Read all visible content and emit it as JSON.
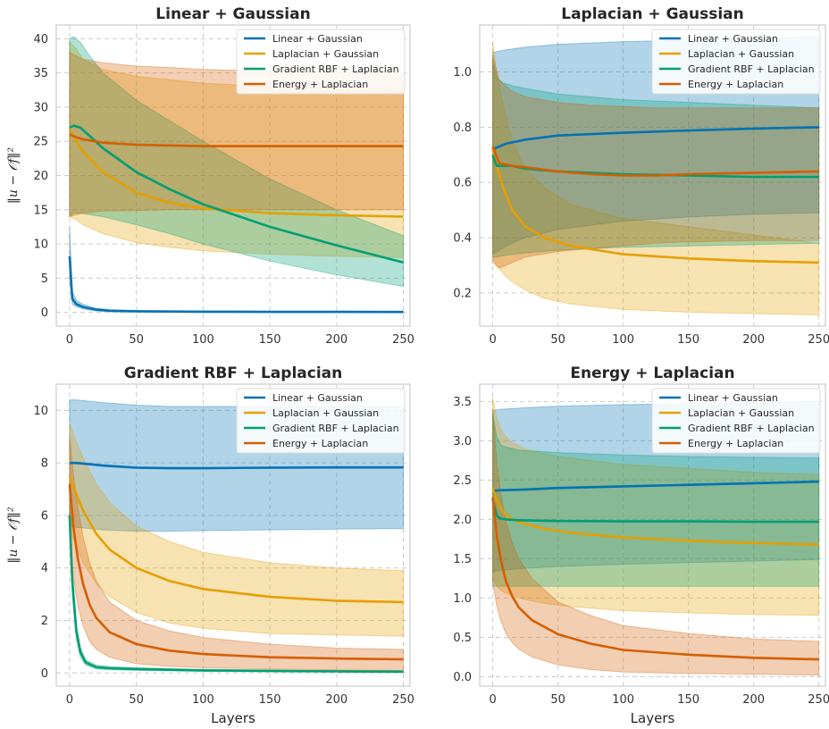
{
  "chart_data": [
    {
      "type": "line",
      "title": "Linear + Gaussian",
      "xlabel": "",
      "ylabel": "‖u − 𝒪f‖²",
      "xlim": [
        -10,
        255
      ],
      "ylim": [
        -2,
        42
      ],
      "xticks": [
        0,
        50,
        100,
        150,
        200,
        250
      ],
      "yticks": [
        0,
        5,
        10,
        15,
        20,
        25,
        30,
        35,
        40
      ],
      "grid": true,
      "legend_position": "top-right",
      "series": [
        {
          "name": "Linear + Gaussian",
          "color": "#0072B2",
          "x": [
            0,
            2,
            5,
            10,
            20,
            30,
            50,
            100,
            150,
            200,
            250
          ],
          "mean": [
            8.2,
            2.0,
            1.2,
            0.8,
            0.4,
            0.25,
            0.15,
            0.1,
            0.08,
            0.07,
            0.06
          ],
          "lower": [
            5.0,
            1.2,
            0.8,
            0.5,
            0.2,
            0.1,
            0.05,
            0.02,
            0.02,
            0.02,
            0.02
          ],
          "upper": [
            12.5,
            3.0,
            1.8,
            1.2,
            0.6,
            0.4,
            0.3,
            0.2,
            0.15,
            0.12,
            0.1
          ]
        },
        {
          "name": "Laplacian + Gaussian",
          "color": "#E69F00",
          "x": [
            0,
            5,
            10,
            25,
            50,
            75,
            100,
            150,
            200,
            250
          ],
          "mean": [
            26.8,
            25.0,
            23.5,
            20.5,
            17.5,
            16.0,
            15.2,
            14.5,
            14.2,
            14.0
          ],
          "lower": [
            14.0,
            13.5,
            12.8,
            11.5,
            10.2,
            9.5,
            9.0,
            8.5,
            8.2,
            8.0
          ],
          "upper": [
            39.5,
            38.5,
            37.0,
            35.5,
            34.5,
            34.0,
            33.5,
            33.0,
            32.8,
            32.5
          ]
        },
        {
          "name": "Gradient RBF + Laplacian",
          "color": "#009E73",
          "x": [
            0,
            3,
            8,
            15,
            25,
            50,
            75,
            100,
            150,
            200,
            250
          ],
          "mean": [
            27.0,
            27.3,
            27.0,
            25.8,
            24.0,
            20.5,
            18.0,
            15.8,
            12.5,
            9.8,
            7.3
          ],
          "lower": [
            14.0,
            14.5,
            14.5,
            14.3,
            14.0,
            12.8,
            11.5,
            10.0,
            7.5,
            5.5,
            3.8
          ],
          "upper": [
            40.0,
            40.3,
            39.5,
            37.5,
            35.0,
            31.0,
            28.0,
            25.0,
            19.5,
            15.0,
            11.2
          ]
        },
        {
          "name": "Energy + Laplacian",
          "color": "#D55E00",
          "x": [
            0,
            5,
            10,
            25,
            50,
            75,
            100,
            150,
            200,
            250
          ],
          "mean": [
            26.0,
            25.6,
            25.3,
            24.8,
            24.5,
            24.4,
            24.3,
            24.3,
            24.3,
            24.3
          ],
          "lower": [
            14.0,
            14.3,
            14.5,
            14.8,
            14.9,
            15.0,
            15.0,
            15.0,
            15.0,
            15.0
          ],
          "upper": [
            38.0,
            37.5,
            37.0,
            36.5,
            36.0,
            35.8,
            35.5,
            35.3,
            35.2,
            35.0
          ]
        }
      ]
    },
    {
      "type": "line",
      "title": "Laplacian + Gaussian",
      "xlabel": "",
      "ylabel": "",
      "xlim": [
        -10,
        255
      ],
      "ylim": [
        0.08,
        1.17
      ],
      "xticks": [
        0,
        50,
        100,
        150,
        200,
        250
      ],
      "yticks": [
        0.2,
        0.4,
        0.6,
        0.8,
        1.0
      ],
      "grid": true,
      "legend_position": "top-right",
      "series": [
        {
          "name": "Linear + Gaussian",
          "color": "#0072B2",
          "x": [
            0,
            10,
            25,
            50,
            100,
            150,
            200,
            250
          ],
          "mean": [
            0.72,
            0.74,
            0.755,
            0.77,
            0.78,
            0.788,
            0.795,
            0.8
          ],
          "lower": [
            0.34,
            0.37,
            0.4,
            0.43,
            0.46,
            0.475,
            0.485,
            0.49
          ],
          "upper": [
            1.07,
            1.08,
            1.09,
            1.1,
            1.11,
            1.115,
            1.12,
            1.13
          ]
        },
        {
          "name": "Laplacian + Gaussian",
          "color": "#E69F00",
          "x": [
            0,
            3,
            8,
            15,
            25,
            40,
            60,
            100,
            150,
            200,
            250
          ],
          "mean": [
            0.72,
            0.66,
            0.58,
            0.5,
            0.44,
            0.4,
            0.37,
            0.34,
            0.325,
            0.315,
            0.31
          ],
          "lower": [
            0.33,
            0.3,
            0.27,
            0.24,
            0.21,
            0.18,
            0.16,
            0.14,
            0.13,
            0.125,
            0.12
          ],
          "upper": [
            1.11,
            1.0,
            0.88,
            0.75,
            0.65,
            0.58,
            0.52,
            0.47,
            0.44,
            0.41,
            0.38
          ]
        },
        {
          "name": "Gradient RBF + Laplacian",
          "color": "#009E73",
          "x": [
            0,
            3,
            8,
            15,
            25,
            50,
            100,
            150,
            200,
            250
          ],
          "mean": [
            0.7,
            0.66,
            0.66,
            0.66,
            0.65,
            0.64,
            0.63,
            0.625,
            0.62,
            0.62
          ],
          "lower": [
            0.33,
            0.33,
            0.335,
            0.34,
            0.345,
            0.355,
            0.365,
            0.37,
            0.375,
            0.38
          ],
          "upper": [
            1.04,
            0.98,
            0.96,
            0.95,
            0.94,
            0.92,
            0.9,
            0.89,
            0.88,
            0.87
          ]
        },
        {
          "name": "Energy + Laplacian",
          "color": "#D55E00",
          "x": [
            0,
            5,
            15,
            25,
            50,
            75,
            100,
            125,
            150,
            200,
            250
          ],
          "mean": [
            0.73,
            0.67,
            0.66,
            0.655,
            0.64,
            0.63,
            0.625,
            0.625,
            0.63,
            0.635,
            0.64
          ],
          "lower": [
            0.31,
            0.29,
            0.31,
            0.33,
            0.35,
            0.36,
            0.37,
            0.38,
            0.385,
            0.39,
            0.39
          ],
          "upper": [
            1.06,
            0.97,
            0.93,
            0.91,
            0.89,
            0.88,
            0.875,
            0.87,
            0.87,
            0.87,
            0.87
          ]
        }
      ]
    },
    {
      "type": "line",
      "title": "Gradient RBF + Laplacian",
      "xlabel": "Layers",
      "ylabel": "‖u − 𝒪f‖²",
      "xlim": [
        -10,
        255
      ],
      "ylim": [
        -0.5,
        11.0
      ],
      "xticks": [
        0,
        50,
        100,
        150,
        200,
        250
      ],
      "yticks": [
        0,
        2,
        4,
        6,
        8,
        10
      ],
      "grid": true,
      "legend_position": "top-right",
      "series": [
        {
          "name": "Linear + Gaussian",
          "color": "#0072B2",
          "x": [
            0,
            5,
            25,
            50,
            75,
            100,
            150,
            200,
            250
          ],
          "mean": [
            8.0,
            8.0,
            7.9,
            7.82,
            7.8,
            7.8,
            7.82,
            7.83,
            7.83
          ],
          "lower": [
            5.6,
            5.55,
            5.45,
            5.4,
            5.4,
            5.42,
            5.45,
            5.48,
            5.5
          ],
          "upper": [
            10.4,
            10.4,
            10.3,
            10.2,
            10.15,
            10.15,
            10.15,
            10.15,
            10.15
          ]
        },
        {
          "name": "Laplacian + Gaussian",
          "color": "#E69F00",
          "x": [
            0,
            5,
            10,
            20,
            30,
            50,
            75,
            100,
            150,
            200,
            250
          ],
          "mean": [
            7.5,
            6.8,
            6.2,
            5.3,
            4.7,
            4.0,
            3.5,
            3.2,
            2.9,
            2.75,
            2.7
          ],
          "lower": [
            5.5,
            4.8,
            4.2,
            3.4,
            2.9,
            2.3,
            1.9,
            1.7,
            1.5,
            1.45,
            1.4
          ],
          "upper": [
            9.5,
            8.8,
            8.2,
            7.2,
            6.5,
            5.6,
            5.0,
            4.6,
            4.2,
            4.0,
            3.9
          ]
        },
        {
          "name": "Gradient RBF + Laplacian",
          "color": "#009E73",
          "x": [
            0,
            2,
            5,
            8,
            12,
            20,
            30,
            50,
            100,
            150,
            200,
            250
          ],
          "mean": [
            6.0,
            3.5,
            1.6,
            0.8,
            0.4,
            0.22,
            0.18,
            0.15,
            0.1,
            0.08,
            0.06,
            0.05
          ],
          "lower": [
            5.6,
            3.0,
            1.3,
            0.6,
            0.3,
            0.15,
            0.12,
            0.1,
            0.06,
            0.04,
            0.03,
            0.02
          ],
          "upper": [
            6.4,
            4.0,
            1.9,
            1.0,
            0.5,
            0.3,
            0.25,
            0.2,
            0.14,
            0.12,
            0.1,
            0.08
          ]
        },
        {
          "name": "Energy + Laplacian",
          "color": "#D55E00",
          "x": [
            0,
            3,
            6,
            10,
            15,
            20,
            30,
            50,
            75,
            100,
            150,
            200,
            250
          ],
          "mean": [
            7.2,
            5.5,
            4.4,
            3.4,
            2.6,
            2.1,
            1.55,
            1.1,
            0.85,
            0.72,
            0.6,
            0.55,
            0.52
          ],
          "lower": [
            5.4,
            3.6,
            2.6,
            1.8,
            1.2,
            0.9,
            0.6,
            0.35,
            0.25,
            0.2,
            0.15,
            0.12,
            0.1
          ],
          "upper": [
            9.0,
            7.5,
            6.4,
            5.2,
            4.2,
            3.5,
            2.7,
            2.0,
            1.6,
            1.35,
            1.1,
            0.95,
            0.9
          ]
        }
      ]
    },
    {
      "type": "line",
      "title": "Energy + Laplacian",
      "xlabel": "Layers",
      "ylabel": "",
      "xlim": [
        -10,
        255
      ],
      "ylim": [
        -0.12,
        3.72
      ],
      "xticks": [
        0,
        50,
        100,
        150,
        200,
        250
      ],
      "yticks": [
        0.0,
        0.5,
        1.0,
        1.5,
        2.0,
        2.5,
        3.0,
        3.5
      ],
      "grid": true,
      "legend_position": "top-right",
      "series": [
        {
          "name": "Linear + Gaussian",
          "color": "#0072B2",
          "x": [
            0,
            5,
            25,
            50,
            100,
            150,
            200,
            250
          ],
          "mean": [
            2.36,
            2.37,
            2.38,
            2.4,
            2.42,
            2.44,
            2.46,
            2.48
          ],
          "lower": [
            1.33,
            1.35,
            1.38,
            1.4,
            1.43,
            1.45,
            1.47,
            1.49
          ],
          "upper": [
            3.38,
            3.4,
            3.42,
            3.44,
            3.46,
            3.47,
            3.48,
            3.5
          ]
        },
        {
          "name": "Laplacian + Gaussian",
          "color": "#E69F00",
          "x": [
            0,
            3,
            6,
            10,
            15,
            25,
            40,
            60,
            100,
            150,
            200,
            250
          ],
          "mean": [
            2.4,
            2.25,
            2.14,
            2.06,
            2.0,
            1.94,
            1.88,
            1.83,
            1.77,
            1.73,
            1.7,
            1.68
          ],
          "lower": [
            1.25,
            1.15,
            1.1,
            1.06,
            1.03,
            0.98,
            0.93,
            0.89,
            0.84,
            0.81,
            0.79,
            0.78
          ],
          "upper": [
            3.55,
            3.3,
            3.15,
            3.05,
            2.98,
            2.9,
            2.83,
            2.78,
            2.7,
            2.65,
            2.6,
            2.57
          ]
        },
        {
          "name": "Gradient RBF + Laplacian",
          "color": "#009E73",
          "x": [
            0,
            3,
            6,
            10,
            20,
            50,
            100,
            150,
            200,
            250
          ],
          "mean": [
            2.25,
            2.05,
            2.01,
            2.0,
            1.99,
            1.98,
            1.975,
            1.975,
            1.97,
            1.97
          ],
          "lower": [
            1.15,
            1.15,
            1.15,
            1.15,
            1.15,
            1.15,
            1.15,
            1.15,
            1.15,
            1.15
          ],
          "upper": [
            3.35,
            3.05,
            2.95,
            2.92,
            2.88,
            2.85,
            2.82,
            2.8,
            2.79,
            2.78
          ]
        },
        {
          "name": "Energy + Laplacian",
          "color": "#D55E00",
          "x": [
            0,
            3,
            6,
            10,
            15,
            20,
            30,
            50,
            75,
            100,
            150,
            200,
            250
          ],
          "mean": [
            2.28,
            1.8,
            1.5,
            1.22,
            1.02,
            0.88,
            0.72,
            0.54,
            0.42,
            0.34,
            0.28,
            0.24,
            0.22
          ],
          "lower": [
            1.2,
            0.9,
            0.72,
            0.55,
            0.43,
            0.35,
            0.25,
            0.15,
            0.09,
            0.06,
            0.04,
            0.03,
            0.02
          ],
          "upper": [
            3.4,
            2.75,
            2.35,
            1.98,
            1.7,
            1.5,
            1.25,
            0.95,
            0.78,
            0.65,
            0.55,
            0.48,
            0.45
          ]
        }
      ]
    }
  ]
}
